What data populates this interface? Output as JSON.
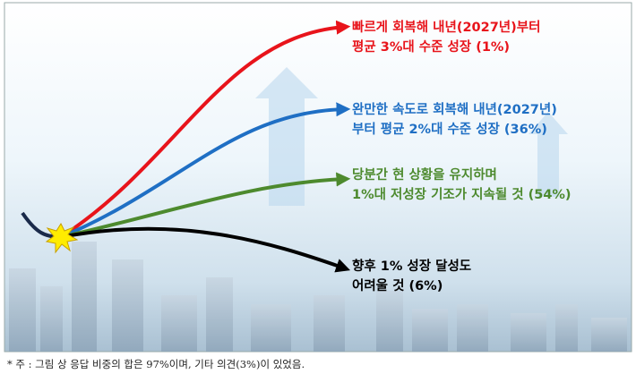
{
  "scenarios": [
    {
      "lines": [
        "빠르게 회복해 내년(2027년)부터",
        "평균 3%대 수준 성장 (1%)"
      ]
    },
    {
      "lines": [
        "완만한 속도로 회복해 내년(2027년)",
        "부터 평균 2%대 수준 성장 (36%)"
      ]
    },
    {
      "lines": [
        "당분간 현 상황을 유지하며",
        "1%대 저성장 기조가 지속될 것 (54%)"
      ]
    },
    {
      "lines": [
        "향후 1% 성장 달성도",
        "어려울 것 (6%)"
      ]
    }
  ],
  "footnote": "* 주 : 그림 상 응답 비중의 합은 97%이며, 기타 의견(3%)이 있었음."
}
